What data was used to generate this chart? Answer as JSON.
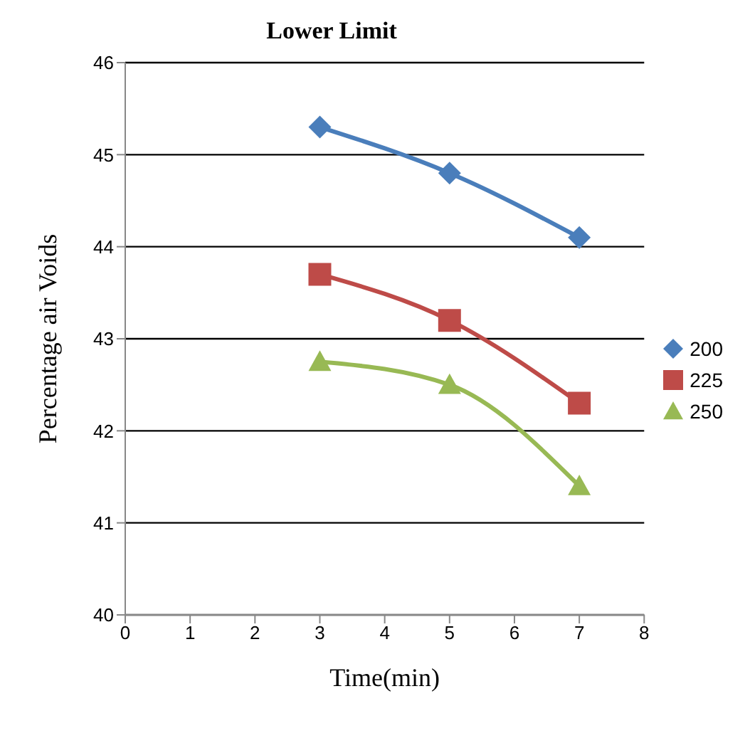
{
  "chart_data": {
    "type": "line",
    "title": "Lower Limit",
    "xlabel": "Time(min)",
    "ylabel": "Percentage air Voids",
    "x": [
      3,
      5,
      7
    ],
    "series": [
      {
        "name": "200",
        "color": "#4a7ebb",
        "marker": "diamond",
        "values": [
          45.3,
          44.8,
          44.1
        ]
      },
      {
        "name": "225",
        "color": "#be4b48",
        "marker": "square",
        "values": [
          43.7,
          43.2,
          42.3
        ]
      },
      {
        "name": "250",
        "color": "#98b954",
        "marker": "triangle",
        "values": [
          42.75,
          42.5,
          41.4
        ]
      }
    ],
    "xlim": [
      0,
      8
    ],
    "xticks": [
      0,
      1,
      2,
      3,
      4,
      5,
      6,
      7,
      8
    ],
    "ylim": [
      40,
      46
    ],
    "yticks": [
      40,
      41,
      42,
      43,
      44,
      45,
      46
    ],
    "grid": "y",
    "legend": "right"
  }
}
